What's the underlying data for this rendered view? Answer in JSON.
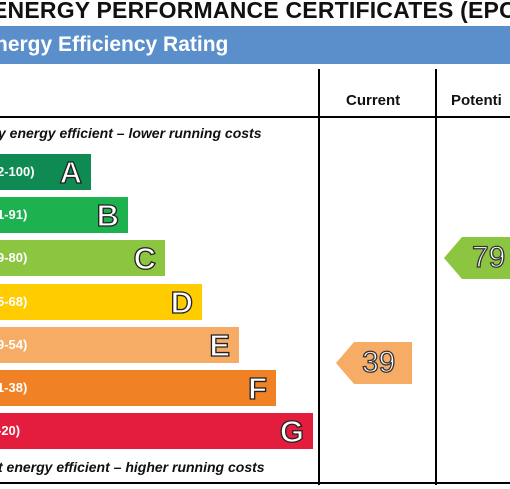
{
  "title": "ENERGY PERFORMANCE CERTIFICATES (EPC",
  "banner": "nergy Efficiency Rating",
  "columns": {
    "current": "Current",
    "potential": "Potenti"
  },
  "captions": {
    "top": "y energy efficient – lower running costs",
    "bottom": "t energy efficient – higher running costs"
  },
  "bands": [
    {
      "range": "2-100)",
      "letter": "A",
      "color": "#0f8a52"
    },
    {
      "range": "1-91)",
      "letter": "B",
      "color": "#1eb150"
    },
    {
      "range": "9-80)",
      "letter": "C",
      "color": "#8cc640"
    },
    {
      "range": "5-68)",
      "letter": "D",
      "color": "#ffcc00"
    },
    {
      "range": "9-54)",
      "letter": "E",
      "color": "#f6ac64"
    },
    {
      "range": "1-38)",
      "letter": "F",
      "color": "#f08125"
    },
    {
      "range": "-20)",
      "letter": "G",
      "color": "#e41d3e"
    }
  ],
  "current": {
    "value": "39",
    "color": "#f6ac64"
  },
  "potential": {
    "value": "79",
    "color": "#8cc640"
  }
}
